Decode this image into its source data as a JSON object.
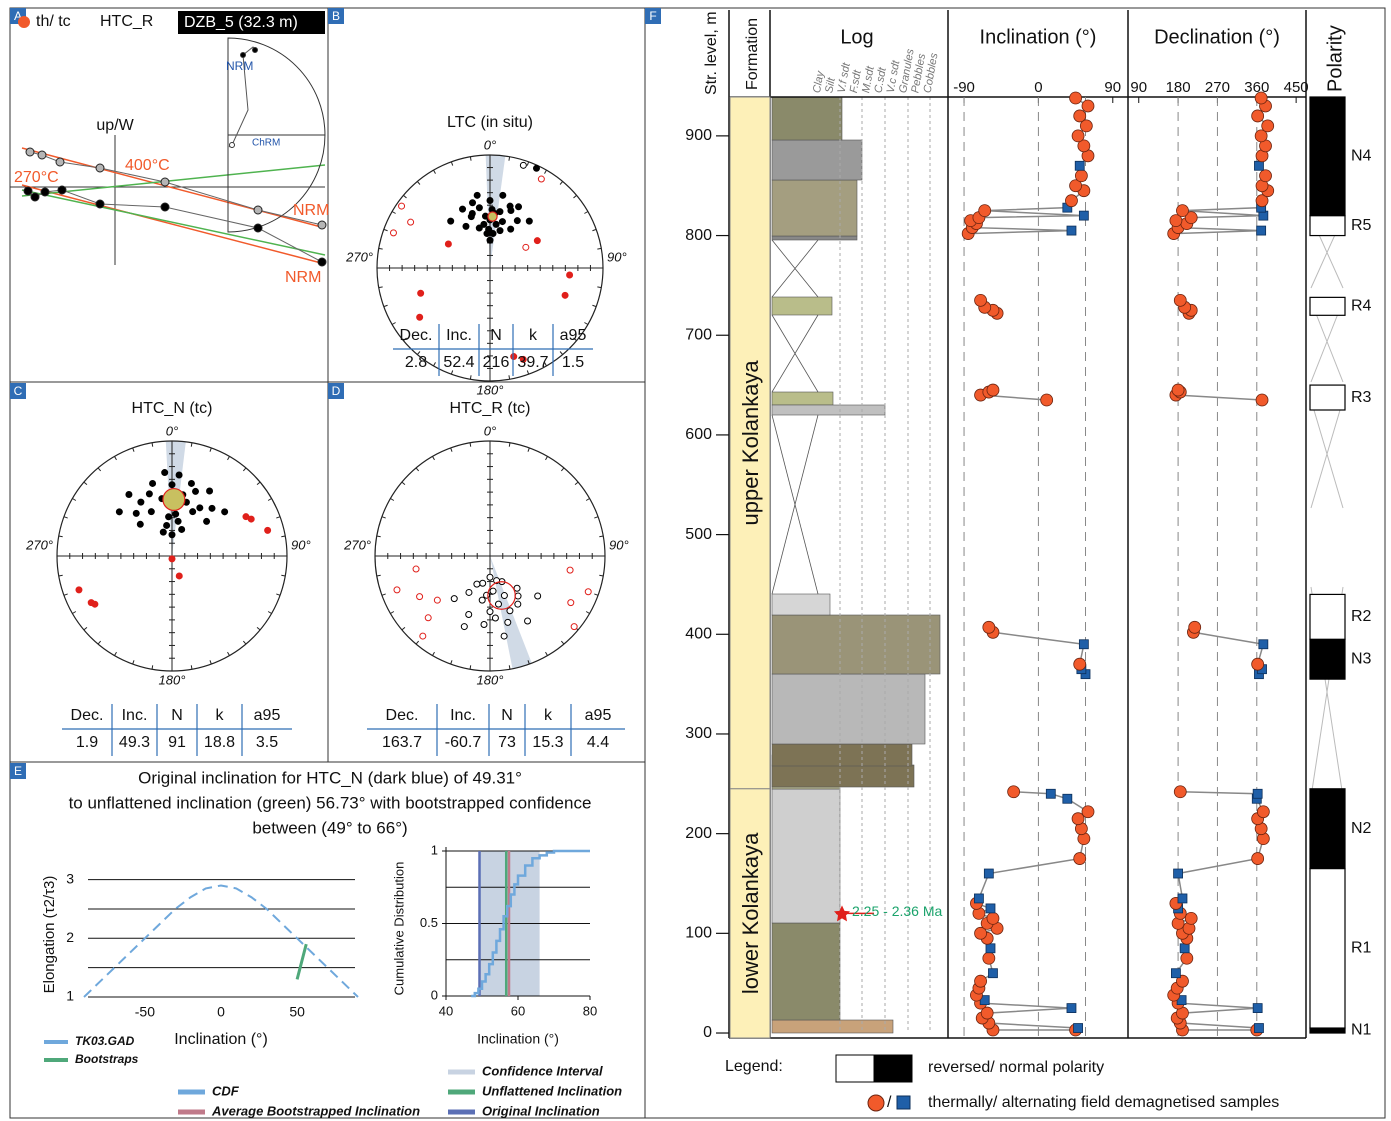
{
  "figure": {
    "panel_labels": [
      "A",
      "B",
      "C",
      "D",
      "E",
      "F"
    ]
  },
  "chart_data": [
    {
      "type": "zijderveld",
      "legend": "th/ tc",
      "title": "HTC_R",
      "sample": "DZB_5 (32.3 m)",
      "axis_label": "up/W",
      "annotations": [
        "400°C",
        "270°C",
        "NRM",
        "NRM"
      ],
      "inset_labels": [
        "NRM",
        "ChRM"
      ],
      "series": [
        {
          "color": "#000000",
          "x": [
            -0.87,
            -0.8,
            -0.7,
            -0.53,
            -0.15,
            0.5,
            1.43,
            2.07
          ],
          "values": [
            -0.04,
            -0.1,
            -0.05,
            -0.03,
            -0.17,
            -0.2,
            -0.41,
            -0.75
          ]
        },
        {
          "color": "#b5b5b5",
          "x": [
            -0.85,
            -0.73,
            -0.55,
            -0.15,
            0.5,
            1.43,
            2.07
          ],
          "values": [
            0.35,
            0.32,
            0.25,
            0.19,
            0.05,
            -0.23,
            -0.38
          ]
        }
      ]
    },
    {
      "type": "stereonet",
      "title": "LTC (in situ)",
      "directions": [
        "0°",
        "90°",
        "180°",
        "270°"
      ],
      "series": [
        {
          "color": "#000000",
          "filled": true,
          "dec": [
            0,
            5,
            355,
            10,
            350,
            15,
            345,
            20,
            340,
            25,
            335,
            0,
            30,
            5,
            355,
            10,
            350,
            320,
            40,
            0,
            15,
            345,
            28,
            330,
            8,
            352,
            2,
            358,
            18,
            342,
            25
          ],
          "inc": [
            55,
            50,
            52,
            48,
            45,
            55,
            60,
            45,
            50,
            40,
            42,
            40,
            50,
            65,
            65,
            35,
            35,
            45,
            45,
            70,
            62,
            40,
            58,
            55,
            58,
            58,
            47,
            62,
            42,
            48,
            3
          ]
        },
        {
          "color": "#e0201b",
          "filled": true,
          "dec": [
            250,
            235,
            160,
            165,
            110,
            300,
            95,
            60
          ],
          "inc": [
            35,
            25,
            15,
            20,
            30,
            55,
            30,
            50
          ]
        },
        {
          "color": "#e0201b",
          "filled": false,
          "dec": [
            300,
            305,
            290,
            60,
            30
          ],
          "inc": [
            -20,
            -5,
            -10,
            -60,
            -10
          ]
        },
        {
          "color": "#000000",
          "filled": false,
          "dec": [
            18
          ],
          "inc": [
            -5
          ]
        }
      ],
      "table": {
        "columns": [
          "Dec.",
          "Inc.",
          "N",
          "k",
          "a95"
        ],
        "values": [
          2.8,
          52.4,
          216,
          39.7,
          1.5
        ]
      }
    },
    {
      "type": "stereonet",
      "title": "HTC_N (tc)",
      "directions": [
        "0°",
        "90°",
        "180°",
        "270°"
      ],
      "series": [
        {
          "color": "#000000",
          "filled": true,
          "dec": [
            0,
            10,
            350,
            20,
            340,
            30,
            330,
            5,
            355,
            15,
            345,
            25,
            335,
            40,
            320,
            0,
            10,
            350,
            30,
            325,
            45,
            315,
            0,
            20,
            340,
            5,
            355,
            50,
            310,
            15
          ],
          "inc": [
            50,
            45,
            48,
            40,
            42,
            50,
            45,
            60,
            62,
            35,
            35,
            55,
            55,
            45,
            50,
            38,
            65,
            68,
            35,
            35,
            55,
            58,
            75,
            70,
            72,
            30,
            28,
            40,
            40,
            50
          ]
        },
        {
          "color": "#e0201b",
          "filled": true,
          "dec": [
            65,
            62,
            75,
            250,
            240,
            238,
            180,
            160
          ],
          "inc": [
            25,
            28,
            15,
            15,
            20,
            22,
            88,
            75
          ]
        }
      ],
      "table": {
        "columns": [
          "Dec.",
          "Inc.",
          "N",
          "k",
          "a95"
        ],
        "values": [
          1.9,
          49.3,
          91,
          18.8,
          3.5
        ]
      }
    },
    {
      "type": "stereonet",
      "title": "HTC_R (tc)",
      "directions": [
        "0°",
        "90°",
        "180°",
        "270°"
      ],
      "series": [
        {
          "color": "#000000",
          "filled": false,
          "dec": [
            170,
            160,
            180,
            190,
            175,
            150,
            200,
            165,
            185,
            155,
            195,
            140,
            210,
            170,
            180,
            130,
            220,
            160,
            175,
            150,
            200,
            185,
            165,
            205,
            145
          ],
          "inc": [
            -55,
            -60,
            -50,
            -58,
            -65,
            -50,
            -45,
            -40,
            -40,
            -70,
            -70,
            -60,
            -60,
            -30,
            -75,
            -45,
            -50,
            -48,
            -45,
            -35,
            -35,
            -62,
            -72,
            -68,
            -55
          ]
        },
        {
          "color": "#e0201b",
          "filled": false,
          "dec": [
            120,
            110,
            100,
            240,
            250,
            230,
            220,
            130,
            260,
            225
          ],
          "inc": [
            -20,
            -10,
            -30,
            -30,
            -15,
            -40,
            -10,
            -5,
            -35,
            -25
          ]
        }
      ],
      "table": {
        "columns": [
          "Dec.",
          "Inc.",
          "N",
          "k",
          "a95"
        ],
        "values": [
          163.7,
          -60.7,
          73,
          15.3,
          4.4
        ]
      }
    },
    {
      "type": "line",
      "title": [
        "Original inclination for HTC_N (dark blue) of 49.31°",
        "to unflattened inclination (green) 56.73° with bootstrapped confidence",
        "between (49° to 66°)"
      ],
      "y_label": "Elongation (τ2/τ3)",
      "x_label": "Inclination (°)",
      "xlim": [
        -90,
        90
      ],
      "xticks": [
        -50,
        0,
        50
      ],
      "ylim": [
        1,
        3.3
      ],
      "yticks": [
        1,
        2,
        3
      ],
      "grid_lines": [
        1,
        1.5,
        2,
        2.5,
        3
      ],
      "series": [
        {
          "name": "TK03.GAD",
          "color": "#6fa8dc",
          "dashed": true,
          "x": [
            -90,
            -80,
            -70,
            -60,
            -50,
            -40,
            -30,
            -20,
            -10,
            0,
            10,
            20,
            30,
            40,
            50,
            60,
            70,
            80,
            90
          ],
          "values": [
            1,
            1.25,
            1.5,
            1.75,
            2.0,
            2.25,
            2.5,
            2.7,
            2.85,
            2.9,
            2.85,
            2.7,
            2.5,
            2.25,
            2.0,
            1.75,
            1.5,
            1.25,
            1
          ]
        },
        {
          "name": "Bootstraps",
          "color": "#4fa87a",
          "dashed": false,
          "x": [
            50,
            52,
            54,
            56
          ],
          "values": [
            1.3,
            1.5,
            1.7,
            1.9
          ]
        }
      ]
    },
    {
      "type": "step",
      "y_label": "Cumulative Distribution",
      "x_label": "Inclination (°)",
      "xlim": [
        40,
        80
      ],
      "xticks": [
        40,
        60,
        80
      ],
      "ylim": [
        0,
        1
      ],
      "yticks": [
        0,
        0.5,
        1
      ],
      "grid_lines": [
        0.25,
        0.5,
        0.75,
        1
      ],
      "series": [
        {
          "name": "CDF",
          "color": "#6fa8dc",
          "x": [
            47,
            48,
            49,
            50,
            51,
            52,
            53,
            54,
            55,
            56,
            57,
            58,
            59,
            60,
            62,
            64,
            66,
            68,
            70,
            72,
            80
          ],
          "values": [
            0,
            0.02,
            0.05,
            0.1,
            0.15,
            0.22,
            0.3,
            0.38,
            0.46,
            0.55,
            0.62,
            0.7,
            0.77,
            0.83,
            0.9,
            0.95,
            0.97,
            0.99,
            1,
            1,
            1
          ]
        }
      ],
      "confidence_interval": {
        "name": "Confidence Interval",
        "color": "#c8d3e2",
        "range": [
          49,
          66
        ]
      },
      "markers": [
        {
          "name": "Unflattened Inclination",
          "color": "#4fa87a",
          "value": 56.73
        },
        {
          "name": "Average Bootstrapped Inclination",
          "color": "#c07a8a",
          "value": 57.5
        },
        {
          "name": "Original Inclination",
          "color": "#5b6fb5",
          "value": 49.31
        }
      ]
    },
    {
      "type": "section",
      "y_label": "Str. level, m",
      "ylim": [
        -5,
        939
      ],
      "yticks": [
        0,
        100,
        200,
        300,
        400,
        500,
        600,
        700,
        800,
        900
      ],
      "formation_header": "Formation",
      "formations": [
        "upper Kolankaya",
        "lower Kolankaya"
      ],
      "boundary": 245,
      "log_header": "Log",
      "grain_sizes": [
        "Clay",
        "Silt",
        "V.f sdt",
        "F.sdt",
        "M.sdt",
        "C.sdt",
        "V.c sdt",
        "Granules",
        "Pebbles",
        "Cobbles"
      ],
      "age_label": "2.25 - 2.36 Ma",
      "age_level": 120,
      "inclination": {
        "label": "Inclination (°)",
        "xlim": [
          -107,
          106
        ],
        "xticks": [
          -90,
          0,
          90
        ],
        "dashed": [
          -90,
          0,
          57
        ]
      },
      "declination": {
        "label": "Declination (°)",
        "xlim": [
          70,
          468
        ],
        "xticks": [
          90,
          180,
          270,
          360,
          450
        ],
        "dashed": [
          180,
          270,
          360
        ]
      },
      "colors": {
        "circle": "#f15a2b",
        "square": "#1f5fa8"
      },
      "samples": {
        "level": [
          3,
          3,
          5,
          10,
          15,
          20,
          25,
          30,
          33,
          38,
          45,
          52,
          60,
          75,
          85,
          95,
          100,
          105,
          110,
          115,
          120,
          125,
          130,
          135,
          160,
          175,
          195,
          205,
          215,
          222,
          235,
          240,
          242,
          null,
          360,
          365,
          370,
          390,
          402,
          407,
          null,
          635,
          640,
          643,
          645,
          null,
          722,
          725,
          728,
          735,
          null,
          802,
          805,
          808,
          812,
          815,
          818,
          820,
          825,
          828,
          835,
          845,
          850,
          860,
          870,
          880,
          890,
          900,
          910,
          920,
          930,
          938
        ],
        "inc": [
          -55,
          45,
          48,
          -60,
          -68,
          -62,
          40,
          -70,
          -65,
          -75,
          -72,
          -70,
          -55,
          -60,
          -58,
          -62,
          -70,
          -50,
          -62,
          -55,
          -72,
          -58,
          -75,
          -72,
          -60,
          50,
          55,
          52,
          48,
          60,
          35,
          15,
          -30,
          null,
          57,
          52,
          50,
          55,
          -55,
          -60,
          null,
          10,
          -70,
          -60,
          -55,
          null,
          -50,
          -55,
          -65,
          -70,
          null,
          -85,
          40,
          -80,
          -75,
          -82,
          -72,
          55,
          -65,
          35,
          40,
          55,
          45,
          52,
          50,
          60,
          55,
          48,
          58,
          50,
          60,
          45
        ],
        "dec": [
          190,
          360,
          365,
          185,
          178,
          190,
          362,
          180,
          188,
          170,
          178,
          190,
          175,
          200,
          195,
          200,
          190,
          205,
          180,
          210,
          185,
          180,
          175,
          190,
          180,
          362,
          375,
          370,
          362,
          375,
          360,
          362,
          185,
          null,
          365,
          372,
          362,
          375,
          215,
          218,
          null,
          372,
          175,
          185,
          180,
          null,
          205,
          210,
          195,
          185,
          null,
          170,
          370,
          180,
          200,
          175,
          210,
          375,
          190,
          370,
          372,
          385,
          372,
          380,
          365,
          372,
          380,
          370,
          385,
          362,
          380,
          370
        ],
        "marker": [
          "circle",
          "circle",
          "square",
          "circle",
          "circle",
          "circle",
          "square",
          "circle",
          "square",
          "circle",
          "circle",
          "circle",
          "square",
          "circle",
          "square",
          "circle",
          "circle",
          "circle",
          "circle",
          "circle",
          "circle",
          "square",
          "circle",
          "square",
          "square",
          "circle",
          "circle",
          "circle",
          "circle",
          "circle",
          "square",
          "square",
          "circle",
          null,
          "square",
          "square",
          "circle",
          "square",
          "circle",
          "circle",
          null,
          "circle",
          "circle",
          "circle",
          "circle",
          null,
          "circle",
          "circle",
          "circle",
          "circle",
          null,
          "circle",
          "square",
          "circle",
          "circle",
          "circle",
          "circle",
          "square",
          "circle",
          "square",
          "circle",
          "circle",
          "circle",
          "circle",
          "square",
          "circle",
          "circle",
          "circle",
          "circle",
          "circle",
          "circle",
          "circle"
        ]
      },
      "polarity_header": "Polarity",
      "polarity_zones": [
        {
          "name": "N1",
          "bottom": 0,
          "top": 5,
          "normal": true
        },
        {
          "name": "R1",
          "bottom": 5,
          "top": 165,
          "normal": false
        },
        {
          "name": "N2",
          "bottom": 165,
          "top": 245,
          "normal": true
        },
        {
          "name": "N3",
          "bottom": 355,
          "top": 395,
          "normal": true
        },
        {
          "name": "R2",
          "bottom": 395,
          "top": 440,
          "normal": false
        },
        {
          "name": "R3",
          "bottom": 625,
          "top": 650,
          "normal": false
        },
        {
          "name": "R4",
          "bottom": 720,
          "top": 738,
          "normal": false
        },
        {
          "name": "R5",
          "bottom": 800,
          "top": 820,
          "normal": false
        },
        {
          "name": "N4",
          "bottom": 820,
          "top": 939,
          "normal": true
        }
      ],
      "legend": {
        "title": "Legend:",
        "polarity": "reversed/ normal polarity",
        "separator": "/",
        "samples": "thermally/ alternating field demagnetised samples"
      }
    }
  ]
}
